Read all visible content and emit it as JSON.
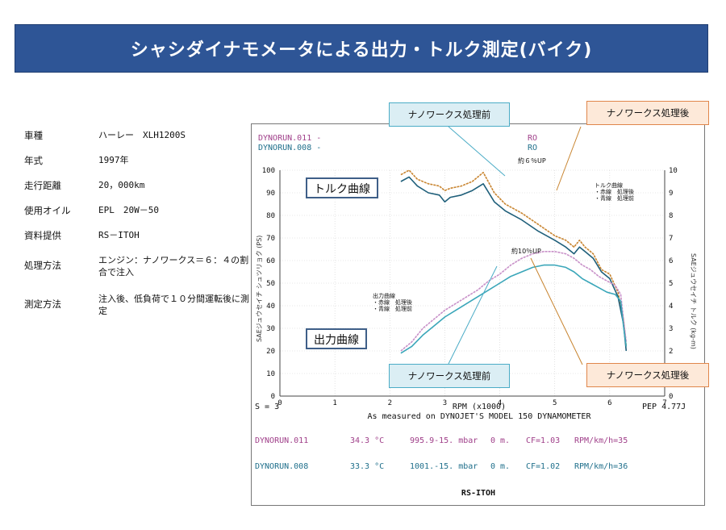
{
  "title": "シャシダイナモメータによる出力・トルク測定(バイク)",
  "specs": [
    {
      "label": "車種",
      "value": "ハーレー　XLH1200S"
    },
    {
      "label": "年式",
      "value": "1997年"
    },
    {
      "label": "走行距離",
      "value": "20，000km"
    },
    {
      "label": "使用オイル",
      "value": "EPL　20W－50"
    },
    {
      "label": "資料提供",
      "value": "RS－ITOH"
    },
    {
      "label": "処理方法",
      "value": "エンジン：ナノワークス＝６：４の割合で注入"
    },
    {
      "label": "測定方法",
      "value": "注入後、低負荷で１０分間運転後に測定"
    }
  ],
  "callouts": {
    "before_top": "ナノワークス処理前",
    "after_top": "ナノワークス処理後",
    "before_bottom": "ナノワークス処理前",
    "after_bottom": "ナノワークス処理後"
  },
  "curve_labels": {
    "torque": "トルク曲線",
    "power": "出力曲線"
  },
  "colors": {
    "title_bg": "#2e5596",
    "before": "#1f5f7a",
    "after": "#c8842f",
    "power_before": "#3aa6b9",
    "power_after": "#c890c8",
    "run011": "#a0408a",
    "run008": "#1f6f8b"
  },
  "chart_data": {
    "type": "line",
    "header_runs": [
      {
        "name": "DYNORUN.011  -",
        "ro": "RO"
      },
      {
        "name": "DYNORUN.008  -",
        "ro": "RO"
      }
    ],
    "xlabel": "RPM (x1000)",
    "xlim": [
      0,
      7
    ],
    "xticks": [
      "0",
      "1",
      "2",
      "3",
      "4",
      "5",
      "6",
      "7"
    ],
    "ylabel_left": "SAEジュウセイチ シュツリョク (PS)",
    "ylabel_right": "SAEジュウセイチ トルク (kg-m)",
    "ylim_left": [
      0,
      100
    ],
    "yticks_left": [
      "0",
      "10",
      "20",
      "30",
      "40",
      "50",
      "60",
      "70",
      "80",
      "90",
      "100"
    ],
    "yticks_right": [
      "0",
      "1",
      "2",
      "3",
      "4",
      "5",
      "6",
      "7",
      "8",
      "9",
      "10"
    ],
    "annotations": {
      "torque_gain": "約６％UP",
      "power_gain": "約10％UP",
      "torque_legend": [
        "トルク曲線",
        "・赤線　処理後",
        "・青線　処理前"
      ],
      "power_legend": [
        "出力曲線",
        "・赤線　処理後",
        "・青線　処理前"
      ]
    },
    "series": [
      {
        "name": "torque_after",
        "role": "after",
        "x": [
          2.2,
          2.35,
          2.5,
          2.7,
          2.9,
          3.0,
          3.1,
          3.3,
          3.5,
          3.7,
          3.9,
          4.1,
          4.4,
          4.7,
          5.0,
          5.2,
          5.35,
          5.45,
          5.55,
          5.7,
          5.85,
          6.0,
          6.15,
          6.25,
          6.3
        ],
        "y": [
          9.8,
          10.0,
          9.6,
          9.4,
          9.3,
          9.1,
          9.2,
          9.3,
          9.5,
          9.9,
          9.0,
          8.5,
          8.1,
          7.6,
          7.1,
          6.9,
          6.6,
          6.9,
          6.6,
          6.3,
          5.6,
          5.4,
          4.6,
          3.4,
          2.2
        ]
      },
      {
        "name": "torque_before",
        "role": "before",
        "x": [
          2.2,
          2.35,
          2.5,
          2.7,
          2.9,
          3.0,
          3.1,
          3.3,
          3.5,
          3.7,
          3.9,
          4.1,
          4.4,
          4.7,
          5.0,
          5.2,
          5.35,
          5.45,
          5.55,
          5.7,
          5.85,
          6.0,
          6.15,
          6.25,
          6.3
        ],
        "y": [
          9.5,
          9.7,
          9.3,
          9.0,
          8.9,
          8.6,
          8.8,
          8.9,
          9.1,
          9.4,
          8.6,
          8.2,
          7.8,
          7.3,
          6.9,
          6.6,
          6.3,
          6.6,
          6.4,
          6.1,
          5.5,
          5.2,
          4.4,
          3.2,
          2.0
        ]
      },
      {
        "name": "power_after",
        "role": "after",
        "x": [
          2.2,
          2.4,
          2.6,
          2.8,
          3.0,
          3.2,
          3.4,
          3.6,
          3.8,
          4.0,
          4.2,
          4.4,
          4.6,
          4.8,
          5.0,
          5.2,
          5.35,
          5.5,
          5.65,
          5.8,
          5.95,
          6.1,
          6.2,
          6.25,
          6.3
        ],
        "y": [
          20,
          24,
          30,
          34,
          38,
          41,
          44,
          47,
          51,
          54,
          58,
          61,
          63,
          64,
          64,
          63,
          61,
          58,
          56,
          53,
          51,
          49,
          45,
          34,
          24
        ]
      },
      {
        "name": "power_before",
        "role": "before",
        "x": [
          2.2,
          2.4,
          2.6,
          2.8,
          3.0,
          3.2,
          3.4,
          3.6,
          3.8,
          4.0,
          4.2,
          4.4,
          4.6,
          4.8,
          5.0,
          5.2,
          5.35,
          5.5,
          5.65,
          5.8,
          5.95,
          6.1,
          6.2,
          6.25,
          6.3
        ],
        "y": [
          19,
          22,
          27,
          31,
          35,
          38,
          41,
          44,
          47,
          50,
          53,
          55,
          57,
          58,
          58,
          57,
          55,
          52,
          50,
          48,
          46,
          45,
          42,
          31,
          22
        ]
      }
    ],
    "footer": {
      "s_label": "S = 3",
      "pep": "PEP 4.77J",
      "measured": "As measured on DYNOJET'S MODEL 150 DYNAMOMETER",
      "runs": [
        {
          "name": "DYNORUN.011",
          "temp": "34.3 °C",
          "pressure": "995.9-15. mbar",
          "alt": "0 m.",
          "cf": "CF=1.03",
          "rpm": "RPM/km/h=35"
        },
        {
          "name": "DYNORUN.008",
          "temp": "33.3 °C",
          "pressure": "1001.-15. mbar",
          "alt": "0 m.",
          "cf": "CF=1.02",
          "rpm": "RPM/km/h=36"
        }
      ],
      "credit": "RS-ITOH"
    }
  }
}
